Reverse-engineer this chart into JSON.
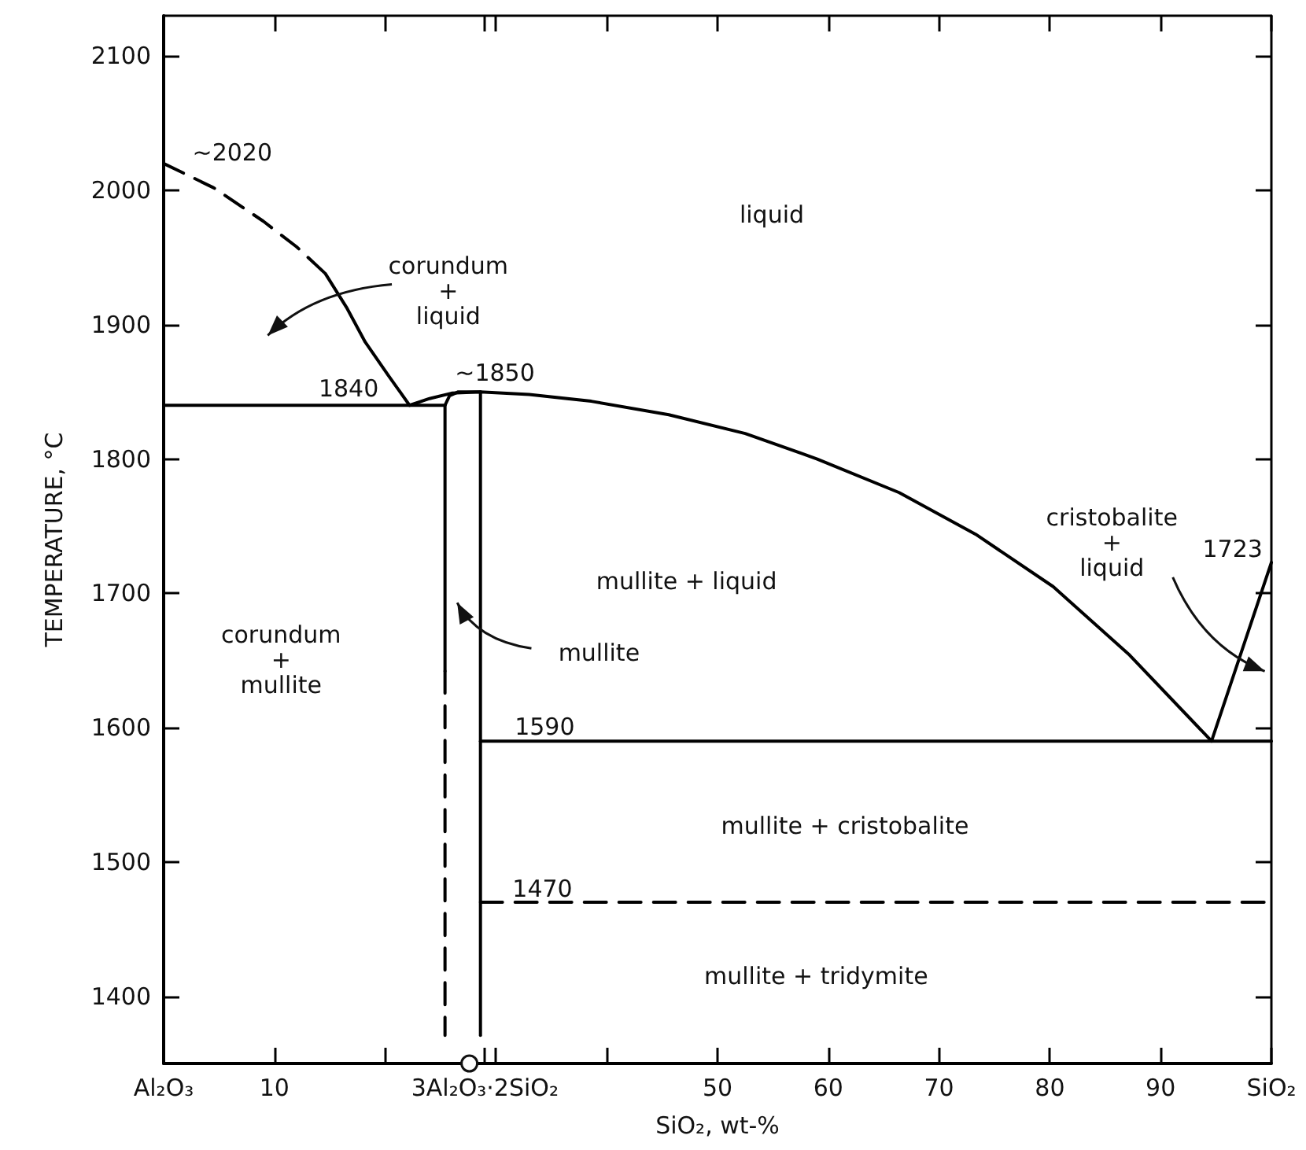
{
  "chart_data": {
    "type": "line",
    "xlabel": "SiO₂, wt-%",
    "ylabel": "TEMPERATURE, °C",
    "xlim": [
      0,
      100
    ],
    "ylim": [
      1350,
      2130
    ],
    "xticks": [
      {
        "value": 0,
        "label": "Al₂O₃"
      },
      10,
      {
        "value": 20,
        "label": null
      },
      {
        "value": 29,
        "label": "3Al₂O₃·2SiO₂"
      },
      {
        "value": 30,
        "label": null
      },
      {
        "value": 40,
        "label": null
      },
      50,
      60,
      70,
      80,
      90,
      {
        "value": 100,
        "label": "SiO₂"
      }
    ],
    "yticks": [
      1400,
      1500,
      1600,
      1700,
      1800,
      1900,
      2000,
      2100
    ],
    "grid": false,
    "marker": "none",
    "series": [
      {
        "color": "#000000",
        "line_style": "dashed",
        "x": [
          0,
          4.5,
          9,
          12,
          14.6
        ],
        "values": [
          2020,
          2002,
          1977,
          1958,
          1938
        ]
      },
      {
        "color": "#000000",
        "line_style": "solid",
        "x": [
          14.6,
          16.5,
          18.2,
          20.3,
          22.2
        ],
        "values": [
          1938,
          1913,
          1887,
          1862,
          1840
        ]
      },
      {
        "color": "#000000",
        "line_style": "solid",
        "x": [
          0,
          25.4
        ],
        "values": [
          1840,
          1840
        ]
      },
      {
        "color": "#000000",
        "line_style": "solid",
        "x": [
          22.2,
          24,
          26,
          28.6,
          33,
          38.6,
          45.6,
          52.5,
          59,
          66.4,
          73.3,
          80.3,
          87.2,
          94.6
        ],
        "values": [
          1840,
          1845,
          1849,
          1850,
          1848,
          1843,
          1833,
          1819,
          1800,
          1775,
          1744,
          1705,
          1654,
          1590
        ]
      },
      {
        "color": "#000000",
        "line_style": "solid",
        "x": [
          94.6,
          100
        ],
        "values": [
          1590,
          1723
        ]
      },
      {
        "color": "#000000",
        "line_style": "solid",
        "x": [
          25.4,
          25.4,
          25.8,
          26.6,
          28.6
        ],
        "values": [
          1642,
          1840,
          1847,
          1850,
          1850
        ]
      },
      {
        "color": "#000000",
        "line_style": "dashed",
        "x": [
          25.4,
          25.4
        ],
        "values": [
          1642,
          1371
        ]
      },
      {
        "color": "#000000",
        "line_style": "solid",
        "x": [
          28.6,
          28.6
        ],
        "values": [
          1850,
          1371
        ]
      },
      {
        "color": "#000000",
        "line_style": "solid",
        "x": [
          28.6,
          100
        ],
        "values": [
          1590,
          1590
        ]
      },
      {
        "color": "#000000",
        "line_style": "dashed",
        "x": [
          28.6,
          100
        ],
        "values": [
          1470,
          1470
        ]
      }
    ],
    "annotations": [
      "~2020",
      "liquid",
      "corundum\n+\nliquid",
      "1840",
      "~1850",
      "cristobalite\n+\nliquid",
      "1723",
      "mullite + liquid",
      "corundum\n+\nmullite",
      "mullite",
      "1590",
      "mullite + cristobalite",
      "1470",
      "mullite + tridymite"
    ]
  }
}
